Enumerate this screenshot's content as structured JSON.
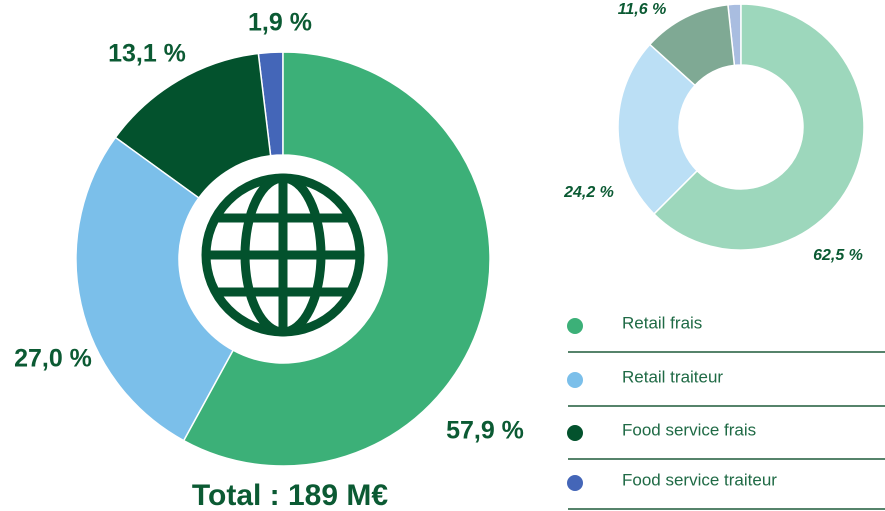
{
  "chart_data": [
    {
      "type": "donut",
      "categories": [
        "Retail frais",
        "Retail traiteur",
        "Food service frais",
        "Food service traiteur"
      ],
      "values": [
        57.9,
        27.0,
        13.1,
        1.9
      ],
      "value_labels": [
        "57,9 %",
        "27,0 %",
        "13,1 %",
        "1,9 %"
      ],
      "colors": [
        "#3cb078",
        "#7bbfea",
        "#03522d",
        "#4466b8"
      ],
      "annotation": "Total : 189 M€"
    },
    {
      "type": "donut",
      "values": [
        62.5,
        24.2,
        11.6,
        1.7
      ],
      "value_labels": [
        "62,5 %",
        "24,2 %",
        "11,6 %",
        null
      ],
      "colors": [
        "#9dd7bc",
        "#bbdff5",
        "#7fa994",
        "#a9bde0"
      ]
    }
  ]
}
